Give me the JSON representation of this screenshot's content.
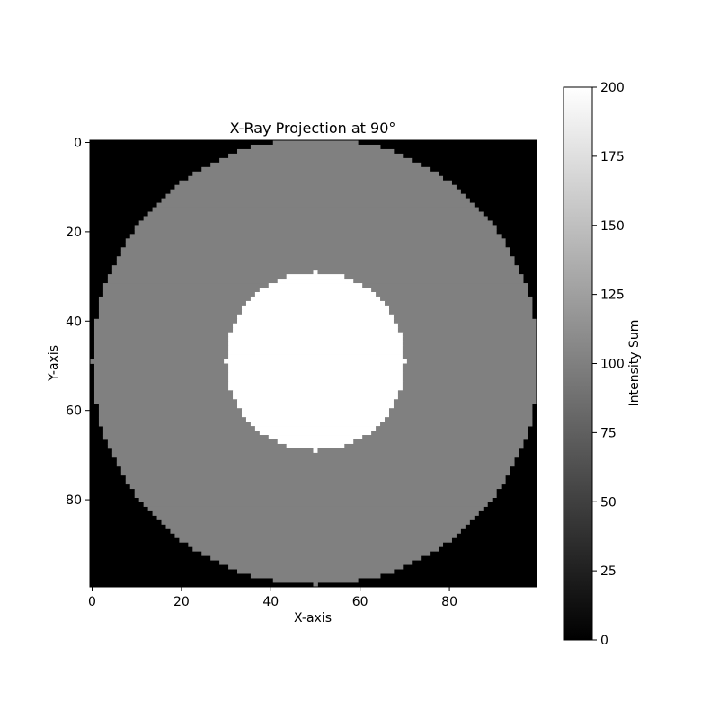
{
  "chart_data": {
    "type": "heatmap",
    "title": "X-Ray Projection at 90°",
    "xlabel": "X-axis",
    "ylabel": "Y-axis",
    "grid": false,
    "colormap": "gray",
    "grid_size": [
      100,
      100
    ],
    "xlim": [
      -0.5,
      99.5
    ],
    "ylim": [
      99.5,
      -0.5
    ],
    "xticks": [
      0,
      20,
      40,
      60,
      80
    ],
    "yticks": [
      0,
      20,
      40,
      60,
      80
    ],
    "pattern": {
      "shape": "concentric disks",
      "center": [
        50,
        49
      ],
      "outer_disk": {
        "radius": 50,
        "value": 100
      },
      "inner_disk": {
        "radius": 20,
        "value": 200
      },
      "background_value": 0
    },
    "colorbar": {
      "label": "Intensity Sum",
      "range": [
        0,
        200
      ],
      "ticks": [
        0,
        25,
        50,
        75,
        100,
        125,
        150,
        175,
        200
      ],
      "min_color": "#000000",
      "max_color": "#ffffff"
    }
  }
}
